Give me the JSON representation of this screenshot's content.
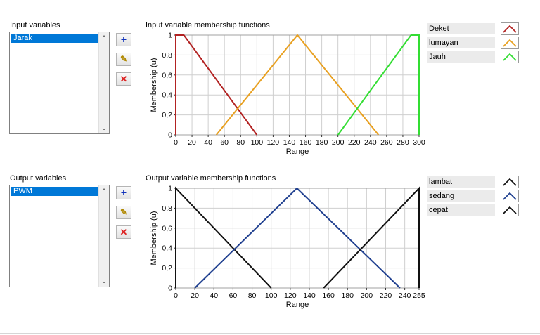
{
  "input_section": {
    "variables_label": "Input variables",
    "variables": [
      "Jarak"
    ],
    "chart_title": "Input variable membership functions"
  },
  "output_section": {
    "variables_label": "Output variables",
    "variables": [
      "PWM"
    ],
    "chart_title": "Output variable membership functions"
  },
  "buttons": {
    "add_icon": "+",
    "edit_icon": "✎",
    "delete_icon": "✕"
  },
  "chart_data": [
    {
      "type": "line",
      "title": "Input variable membership functions",
      "xlabel": "Range",
      "ylabel": "Membership (u)",
      "xlim": [
        0,
        300
      ],
      "ylim": [
        0,
        1
      ],
      "x_ticks": [
        0,
        20,
        40,
        60,
        80,
        100,
        120,
        140,
        160,
        180,
        200,
        220,
        240,
        260,
        280,
        300
      ],
      "y_ticks": [
        0,
        0.2,
        0.4,
        0.6,
        0.8,
        1
      ],
      "y_tick_labels": [
        "0",
        "0,2",
        "0,4",
        "0,6",
        "0,8",
        "1"
      ],
      "grid": true,
      "legend_position": "right",
      "series": [
        {
          "name": "Deket",
          "color": "#b22222",
          "points": [
            [
              0,
              0
            ],
            [
              0,
              1
            ],
            [
              10,
              1
            ],
            [
              100,
              0
            ]
          ]
        },
        {
          "name": "lumayan",
          "color": "#e8a020",
          "points": [
            [
              50,
              0
            ],
            [
              150,
              1
            ],
            [
              250,
              0
            ]
          ]
        },
        {
          "name": "Jauh",
          "color": "#33dd33",
          "points": [
            [
              200,
              0
            ],
            [
              290,
              1
            ],
            [
              300,
              1
            ],
            [
              300,
              0
            ]
          ]
        }
      ]
    },
    {
      "type": "line",
      "title": "Output variable membership functions",
      "xlabel": "Range",
      "ylabel": "Membership (u)",
      "xlim": [
        0,
        255
      ],
      "ylim": [
        0,
        1
      ],
      "x_ticks": [
        0,
        20,
        40,
        60,
        80,
        100,
        120,
        140,
        160,
        180,
        200,
        220,
        240,
        255
      ],
      "y_ticks": [
        0,
        0.2,
        0.4,
        0.6,
        0.8,
        1
      ],
      "y_tick_labels": [
        "0",
        "0,2",
        "0,4",
        "0,6",
        "0,8",
        "1"
      ],
      "grid": true,
      "legend_position": "right",
      "series": [
        {
          "name": "lambat",
          "color": "#111111",
          "points": [
            [
              0,
              0
            ],
            [
              0,
              1
            ],
            [
              100,
              0
            ]
          ]
        },
        {
          "name": "sedang",
          "color": "#1f3f8f",
          "points": [
            [
              20,
              0
            ],
            [
              127,
              1
            ],
            [
              235,
              0
            ]
          ]
        },
        {
          "name": "cepat",
          "color": "#111111",
          "points": [
            [
              155,
              0
            ],
            [
              255,
              1
            ],
            [
              255,
              0
            ]
          ]
        }
      ]
    }
  ]
}
